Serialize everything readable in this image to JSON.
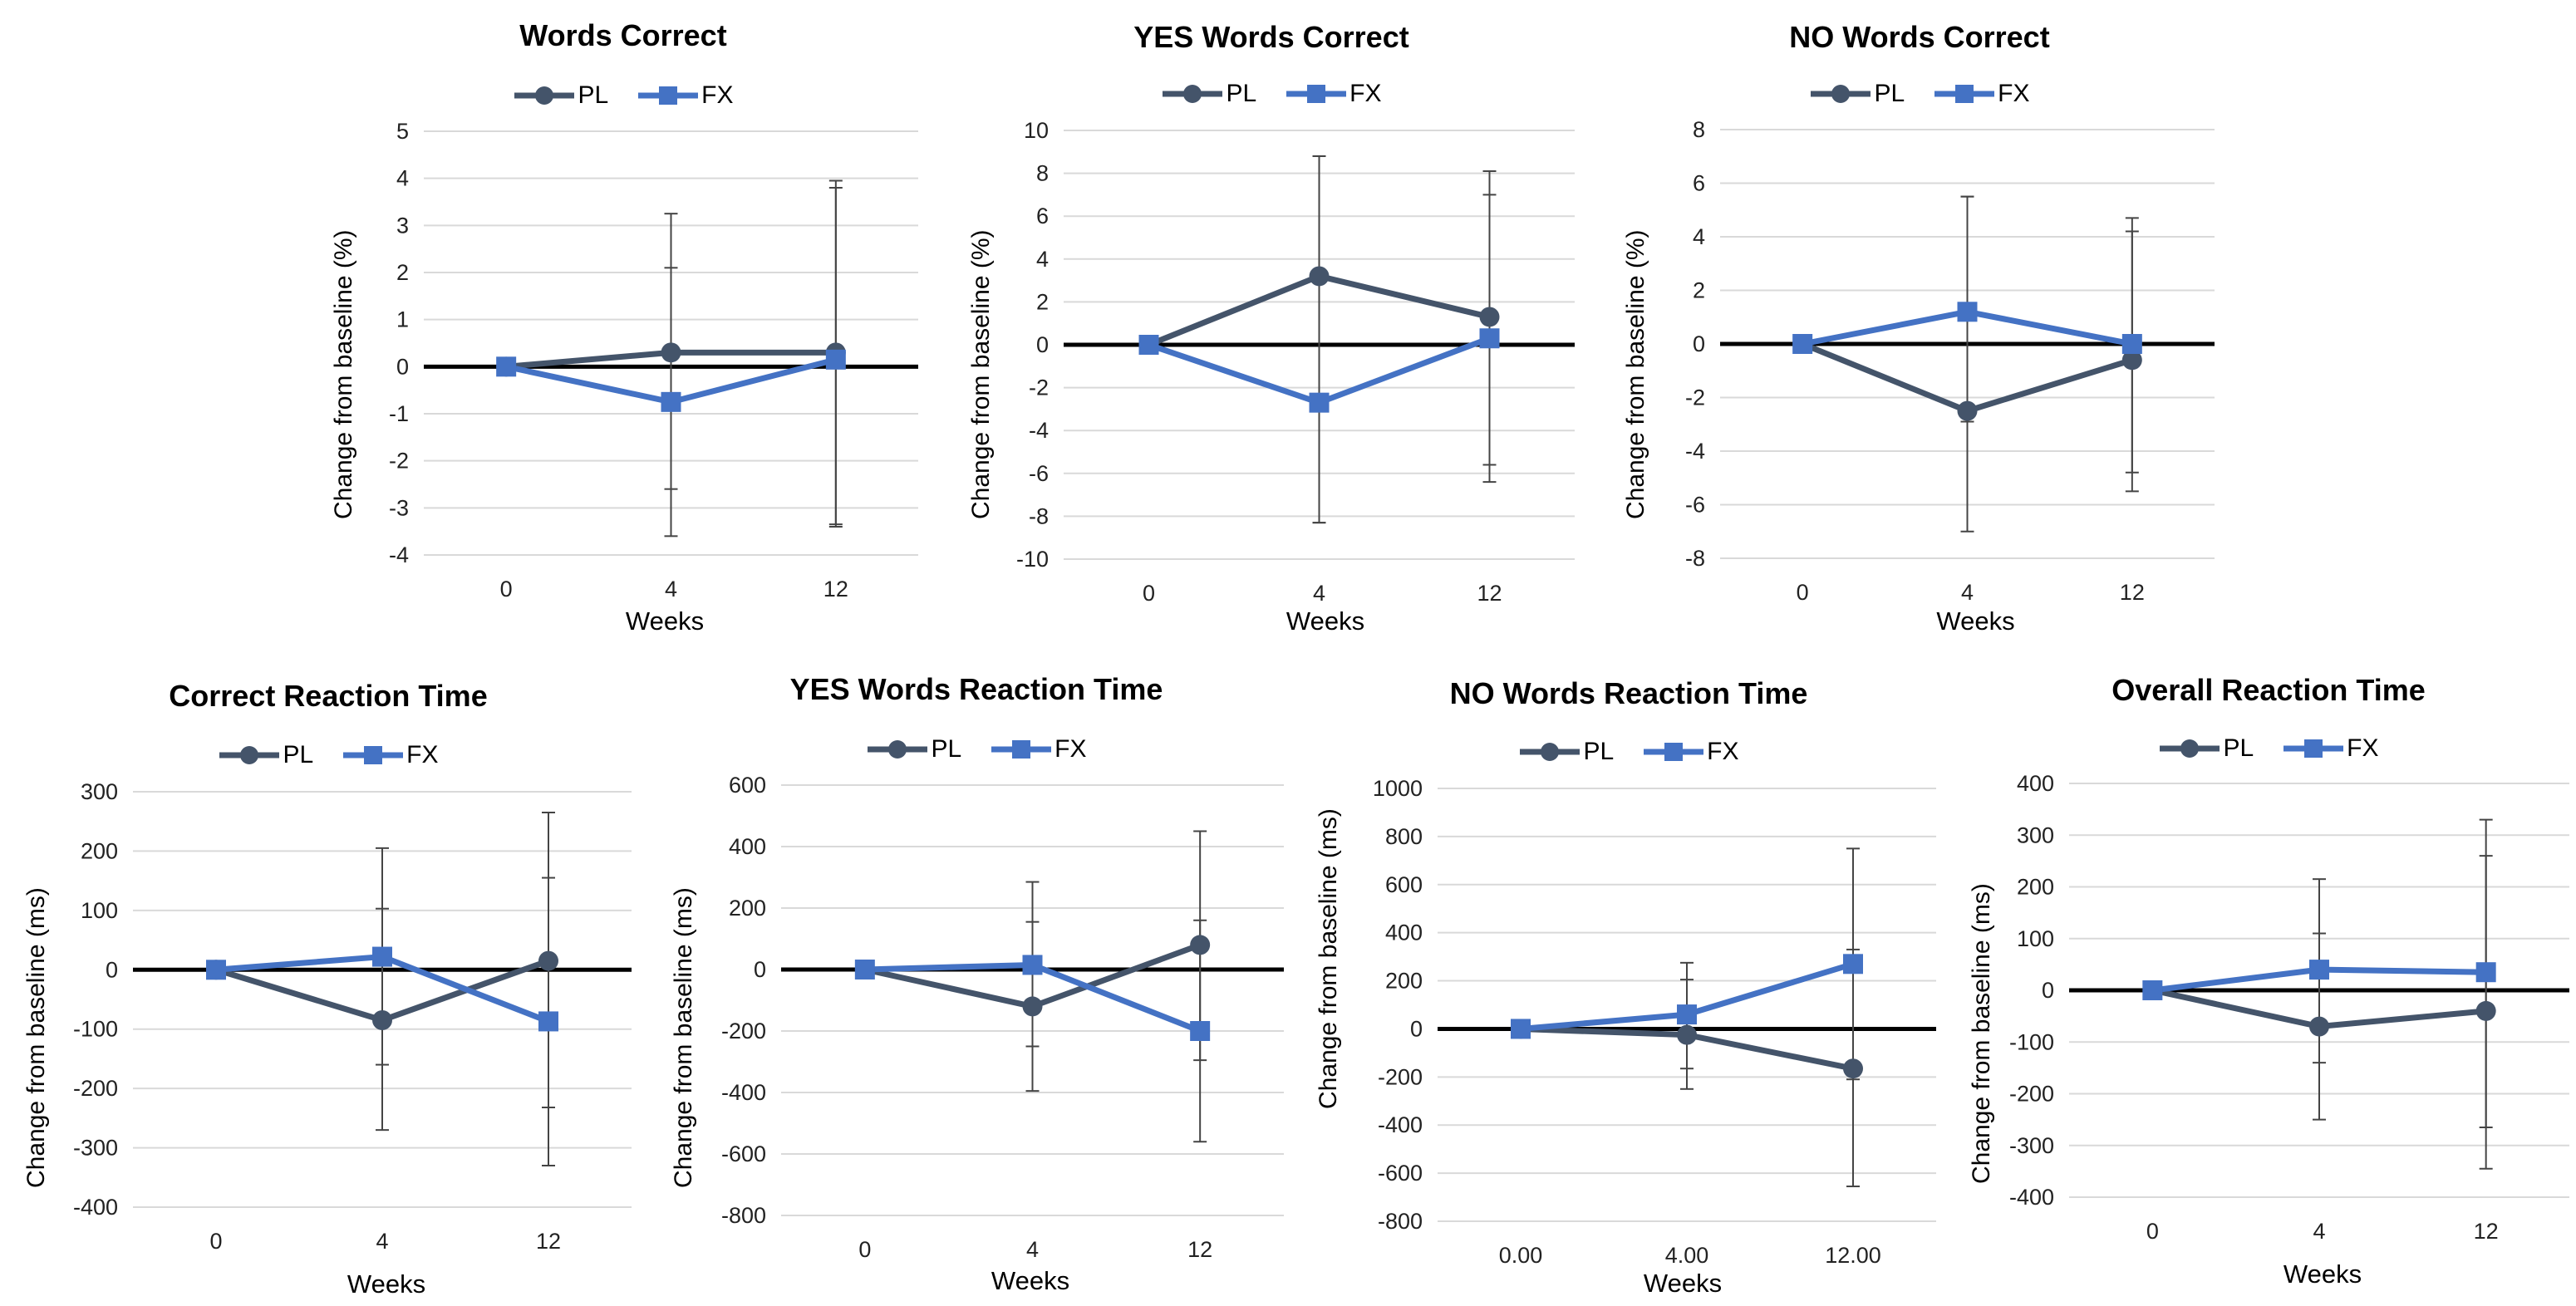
{
  "series_styles": {
    "PL": {
      "color": "#44546A",
      "marker": "circle"
    },
    "FX": {
      "color": "#4472C4",
      "marker": "square"
    }
  },
  "chart_data": [
    {
      "type": "line",
      "title": "Words Correct",
      "xlabel": "Weeks",
      "ylabel": "Change from baseline (%)",
      "categories": [
        "0",
        "4",
        "12"
      ],
      "ylim": [
        -4,
        5
      ],
      "yticks": [
        -4,
        -3,
        -2,
        -1,
        0,
        1,
        2,
        3,
        4,
        5
      ],
      "ytick_labels": [
        "-4",
        "-3",
        "-2",
        "-1",
        "0",
        "1",
        "2",
        "3",
        "4",
        "5"
      ],
      "legend": [
        "PL",
        "FX"
      ],
      "series": [
        {
          "name": "PL",
          "values": [
            0,
            0.3,
            0.3
          ],
          "err_low": [
            0,
            -3.6,
            -3.4
          ],
          "err_high": [
            0,
            3.25,
            3.95
          ]
        },
        {
          "name": "FX",
          "values": [
            0,
            -0.75,
            0.15
          ],
          "err_low": [
            0,
            -2.6,
            -3.35
          ],
          "err_high": [
            0,
            2.1,
            3.8
          ]
        }
      ]
    },
    {
      "type": "line",
      "title": "YES Words Correct",
      "xlabel": "Weeks",
      "ylabel": "Change from baseline (%)",
      "categories": [
        "0",
        "4",
        "12"
      ],
      "ylim": [
        -10,
        10
      ],
      "yticks": [
        -10,
        -8,
        -6,
        -4,
        -2,
        0,
        2,
        4,
        6,
        8,
        10
      ],
      "ytick_labels": [
        "-10",
        "-8",
        "-6",
        "-4",
        "-2",
        "0",
        "2",
        "4",
        "6",
        "8",
        "10"
      ],
      "legend": [
        "PL",
        "FX"
      ],
      "series": [
        {
          "name": "PL",
          "values": [
            0,
            3.2,
            1.3
          ],
          "err_low": [
            0,
            -8.3,
            -6.4
          ],
          "err_high": [
            0,
            8.8,
            8.1
          ]
        },
        {
          "name": "FX",
          "values": [
            0,
            -2.7,
            0.3
          ],
          "err_low": [
            0,
            -8.3,
            -5.6
          ],
          "err_high": [
            0,
            8.8,
            7.0
          ]
        }
      ]
    },
    {
      "type": "line",
      "title": "NO Words Correct",
      "xlabel": "Weeks",
      "ylabel": "Change from baseline (%)",
      "categories": [
        "0",
        "4",
        "12"
      ],
      "ylim": [
        -8,
        8
      ],
      "yticks": [
        -8,
        -6,
        -4,
        -2,
        0,
        2,
        4,
        6,
        8
      ],
      "ytick_labels": [
        "-8",
        "-6",
        "-4",
        "-2",
        "0",
        "2",
        "4",
        "6",
        "8"
      ],
      "legend": [
        "PL",
        "FX"
      ],
      "series": [
        {
          "name": "PL",
          "values": [
            0,
            -2.5,
            -0.6
          ],
          "err_low": [
            0,
            -7.0,
            -5.5
          ],
          "err_high": [
            0,
            5.5,
            4.7
          ]
        },
        {
          "name": "FX",
          "values": [
            0,
            1.2,
            0.0
          ],
          "err_low": [
            0,
            -2.9,
            -4.8
          ],
          "err_high": [
            0,
            5.5,
            4.2
          ]
        }
      ]
    },
    {
      "type": "line",
      "title": "Correct Reaction Time",
      "xlabel": "Weeks",
      "ylabel": "Change from baseline (ms)",
      "categories": [
        "0",
        "4",
        "12"
      ],
      "ylim": [
        -400,
        300
      ],
      "yticks": [
        -400,
        -300,
        -200,
        -100,
        0,
        100,
        200,
        300
      ],
      "ytick_labels": [
        "-400",
        "-300",
        "-200",
        "-100",
        "0",
        "100",
        "200",
        "300"
      ],
      "legend": [
        "PL",
        "FX"
      ],
      "series": [
        {
          "name": "PL",
          "values": [
            0,
            -85,
            15
          ],
          "err_low": [
            0,
            -270,
            -330
          ],
          "err_high": [
            0,
            205,
            265
          ]
        },
        {
          "name": "FX",
          "values": [
            0,
            22,
            -87
          ],
          "err_low": [
            0,
            -160,
            -232
          ],
          "err_high": [
            0,
            103,
            155
          ]
        }
      ]
    },
    {
      "type": "line",
      "title": "YES Words Reaction Time",
      "xlabel": "Weeks",
      "ylabel": "Change from baseline (ms)",
      "categories": [
        "0",
        "4",
        "12"
      ],
      "ylim": [
        -800,
        600
      ],
      "yticks": [
        -800,
        -600,
        -400,
        -200,
        0,
        200,
        400,
        600
      ],
      "ytick_labels": [
        "-800",
        "-600",
        "-400",
        "-200",
        "0",
        "200",
        "400",
        "600"
      ],
      "legend": [
        "PL",
        "FX"
      ],
      "series": [
        {
          "name": "PL",
          "values": [
            0,
            -120,
            80
          ],
          "err_low": [
            0,
            -395,
            -295
          ],
          "err_high": [
            0,
            285,
            450
          ]
        },
        {
          "name": "FX",
          "values": [
            0,
            15,
            -200
          ],
          "err_low": [
            0,
            -250,
            -560
          ],
          "err_high": [
            0,
            155,
            160
          ]
        }
      ]
    },
    {
      "type": "line",
      "title": "NO Words Reaction Time",
      "xlabel": "Weeks",
      "ylabel": "Change from baseline (ms)",
      "categories": [
        "0.00",
        "4.00",
        "12.00"
      ],
      "ylim": [
        -800,
        1000
      ],
      "yticks": [
        -800,
        -600,
        -400,
        -200,
        0,
        200,
        400,
        600,
        800,
        1000
      ],
      "ytick_labels": [
        "-800",
        "-600",
        "-400",
        "-200",
        "0",
        "200",
        "400",
        "600",
        "800",
        "1000"
      ],
      "legend": [
        "PL",
        "FX"
      ],
      "series": [
        {
          "name": "PL",
          "values": [
            0,
            -25,
            -165
          ],
          "err_low": [
            0,
            -250,
            -655
          ],
          "err_high": [
            0,
            275,
            330
          ]
        },
        {
          "name": "FX",
          "values": [
            0,
            60,
            270
          ],
          "err_low": [
            0,
            -165,
            -210
          ],
          "err_high": [
            0,
            205,
            750
          ]
        }
      ]
    },
    {
      "type": "line",
      "title": "Overall Reaction Time",
      "xlabel": "Weeks",
      "ylabel": "Change from baseline (ms)",
      "categories": [
        "0",
        "4",
        "12"
      ],
      "ylim": [
        -400,
        400
      ],
      "yticks": [
        -400,
        -300,
        -200,
        -100,
        0,
        100,
        200,
        300,
        400
      ],
      "ytick_labels": [
        "-400",
        "-300",
        "-200",
        "-100",
        "0",
        "100",
        "200",
        "300",
        "400"
      ],
      "legend": [
        "PL",
        "FX"
      ],
      "series": [
        {
          "name": "PL",
          "values": [
            0,
            -70,
            -40
          ],
          "err_low": [
            0,
            -250,
            -345
          ],
          "err_high": [
            0,
            215,
            330
          ]
        },
        {
          "name": "FX",
          "values": [
            0,
            40,
            35
          ],
          "err_low": [
            0,
            -140,
            -265
          ],
          "err_high": [
            0,
            110,
            260
          ]
        }
      ]
    }
  ]
}
